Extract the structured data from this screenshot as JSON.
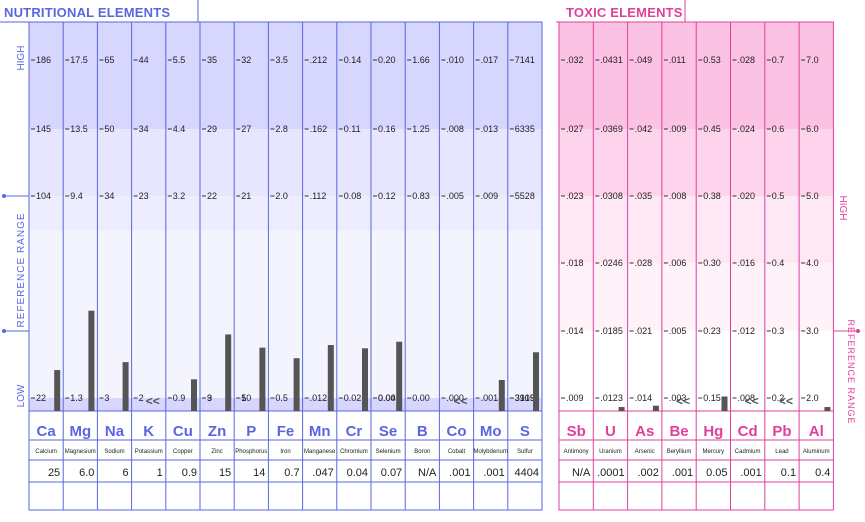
{
  "nutritional": {
    "title": "NUTRITIONAL ELEMENTS",
    "axis_labels": {
      "high": "HIGH",
      "reference": "REFERENCE RANGE",
      "low": "LOW"
    },
    "low_marker": "<<",
    "elements": [
      {
        "symbol": "Ca",
        "name": "Calcium",
        "value": "25",
        "scale": [
          "186",
          "145",
          "104",
          "",
          "",
          "22"
        ],
        "bar_level": 0.62,
        "low": false
      },
      {
        "symbol": "Mg",
        "name": "Magnesium",
        "value": "6.0",
        "scale": [
          "17.5",
          "13.5",
          "9.4",
          "",
          "",
          "1.3"
        ],
        "bar_level": 1.52,
        "low": false
      },
      {
        "symbol": "Na",
        "name": "Sodium",
        "value": "6",
        "scale": [
          "65",
          "50",
          "34",
          "",
          "",
          "3"
        ],
        "bar_level": 0.74,
        "low": false
      },
      {
        "symbol": "K",
        "name": "Potassium",
        "value": "1",
        "scale": [
          "44",
          "34",
          "23",
          "",
          "",
          "2"
        ],
        "bar_level": 0,
        "low": true
      },
      {
        "symbol": "Cu",
        "name": "Copper",
        "value": "0.9",
        "scale": [
          "5.5",
          "4.4",
          "3.2",
          "",
          "",
          "0.9"
        ],
        "bar_level": 0.48,
        "low": false
      },
      {
        "symbol": "Zn",
        "name": "Zinc",
        "value": "15",
        "scale": [
          "35",
          "29",
          "22",
          "",
          "",
          "9",
          "3"
        ],
        "bar_level": 1.16,
        "low": false
      },
      {
        "symbol": "P",
        "name": "Phosphorus",
        "value": "14",
        "scale": [
          "32",
          "27",
          "21",
          "",
          "",
          "10",
          "5"
        ],
        "bar_level": 0.96,
        "low": false
      },
      {
        "symbol": "Fe",
        "name": "Iron",
        "value": "0.7",
        "scale": [
          "3.5",
          "2.8",
          "2.0",
          "",
          "",
          "0.5"
        ],
        "bar_level": 0.8,
        "low": false
      },
      {
        "symbol": "Mn",
        "name": "Manganese",
        "value": ".047",
        "scale": [
          ".212",
          ".162",
          ".112",
          "",
          "",
          ".012"
        ],
        "bar_level": 1.0,
        "low": false
      },
      {
        "symbol": "Cr",
        "name": "Chromium",
        "value": "0.04",
        "scale": [
          "0.14",
          "0.11",
          "0.08",
          "",
          "",
          "0.02"
        ],
        "bar_level": 0.95,
        "low": false
      },
      {
        "symbol": "Se",
        "name": "Selenium",
        "value": "0.07",
        "scale": [
          "0.20",
          "0.16",
          "0.12",
          "",
          "",
          "0.04",
          "0.00"
        ],
        "bar_level": 1.05,
        "low": false
      },
      {
        "symbol": "B",
        "name": "Boron",
        "value": "N/A",
        "scale": [
          "1.66",
          "1.25",
          "0.83",
          "",
          "",
          "0.00"
        ],
        "bar_level": 0,
        "low": false
      },
      {
        "symbol": "Co",
        "name": "Cobalt",
        "value": ".001",
        "scale": [
          ".010",
          ".008",
          ".005",
          "",
          "",
          ".000"
        ],
        "bar_level": 0,
        "low": true
      },
      {
        "symbol": "Mo",
        "name": "Molybdenum",
        "value": ".001",
        "scale": [
          ".017",
          ".013",
          ".009",
          "",
          "",
          ".001"
        ],
        "bar_level": 0.47,
        "low": false
      },
      {
        "symbol": "S",
        "name": "Sulfur",
        "value": "4404",
        "scale": [
          "7141",
          "6335",
          "5528",
          "",
          "",
          "3915",
          "3109"
        ],
        "bar_level": 0.89,
        "low": false
      }
    ]
  },
  "toxic": {
    "title": "TOXIC ELEMENTS",
    "axis_labels": {
      "high": "HIGH",
      "reference": "REFERENCE RANGE"
    },
    "low_marker": "<<",
    "elements": [
      {
        "symbol": "Sb",
        "name": "Antimony",
        "value": "N/A",
        "scale": [
          ".032",
          ".027",
          ".023",
          ".018",
          ".014",
          ".009"
        ],
        "bar_level": 0,
        "low": false
      },
      {
        "symbol": "U",
        "name": "Uranium",
        "value": ".0001",
        "scale": [
          ".0431",
          ".0369",
          ".0308",
          ".0246",
          ".0185",
          ".0123"
        ],
        "bar_level": 0.06,
        "low": false
      },
      {
        "symbol": "As",
        "name": "Arsenic",
        "value": ".002",
        "scale": [
          ".049",
          ".042",
          ".035",
          ".028",
          ".021",
          ".014"
        ],
        "bar_level": 0.08,
        "low": false
      },
      {
        "symbol": "Be",
        "name": "Beryllium",
        "value": ".001",
        "scale": [
          ".011",
          ".009",
          ".008",
          ".006",
          ".005",
          ".003"
        ],
        "bar_level": 0,
        "low": true
      },
      {
        "symbol": "Hg",
        "name": "Mercury",
        "value": "0.05",
        "scale": [
          "0.53",
          "0.45",
          "0.38",
          "0.30",
          "0.23",
          "0.15"
        ],
        "bar_level": 0.22,
        "low": false
      },
      {
        "symbol": "Cd",
        "name": "Cadmium",
        "value": ".001",
        "scale": [
          ".028",
          ".024",
          ".020",
          ".016",
          ".012",
          ".008"
        ],
        "bar_level": 0,
        "low": true
      },
      {
        "symbol": "Pb",
        "name": "Lead",
        "value": "0.1",
        "scale": [
          "0.7",
          "0.6",
          "0.5",
          "0.4",
          "0.3",
          "0.2"
        ],
        "bar_level": 0,
        "low": true
      },
      {
        "symbol": "Al",
        "name": "Aluminum",
        "value": "0.4",
        "scale": [
          "7.0",
          "6.0",
          "5.0",
          "4.0",
          "3.0",
          "2.0"
        ],
        "bar_level": 0.06,
        "low": false
      }
    ]
  },
  "colors": {
    "nutritional_line": "#5a66e0",
    "nutritional_band_high": "#d6d6ff",
    "nutritional_band_mid": "#e6e6ff",
    "nutritional_band_ref": "#f4f4ff",
    "nutritional_band_low": "#d6d6ff",
    "toxic_line": "#e0409a",
    "toxic_band_high": "#fcc2e4",
    "toxic_band_mid": "#fde8f4",
    "bar": "#555555",
    "text": "#222222"
  }
}
